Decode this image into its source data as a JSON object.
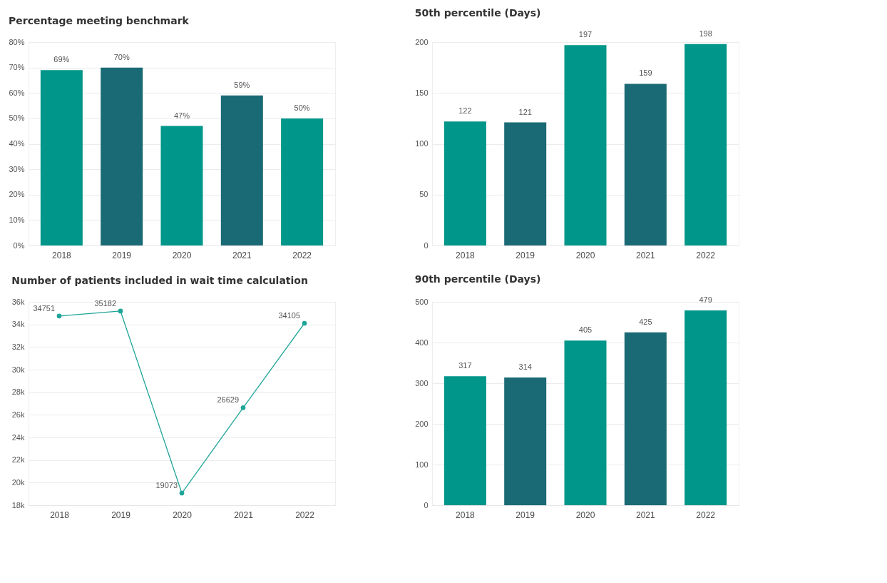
{
  "chart_data": [
    {
      "type": "bar",
      "title": "Percentage meeting benchmark",
      "categories": [
        "2018",
        "2019",
        "2020",
        "2021",
        "2022"
      ],
      "values": [
        69,
        70,
        47,
        59,
        50
      ],
      "value_labels": [
        "69%",
        "70%",
        "47%",
        "59%",
        "50%"
      ],
      "colors": [
        "#00968a",
        "#1a6a75",
        "#00968a",
        "#1a6a75",
        "#00968a"
      ],
      "ylim": [
        0,
        80
      ],
      "yticks": [
        {
          "value": 0,
          "label": "0%"
        },
        {
          "value": 10,
          "label": "10%"
        },
        {
          "value": 20,
          "label": "20%"
        },
        {
          "value": 30,
          "label": "30%"
        },
        {
          "value": 40,
          "label": "40%"
        },
        {
          "value": 50,
          "label": "50%"
        },
        {
          "value": 60,
          "label": "60%"
        },
        {
          "value": 70,
          "label": "70%"
        },
        {
          "value": 80,
          "label": "80%"
        }
      ],
      "grid": "y"
    },
    {
      "type": "bar",
      "title": "50th percentile (Days)",
      "categories": [
        "2018",
        "2019",
        "2020",
        "2021",
        "2022"
      ],
      "values": [
        122,
        121,
        197,
        159,
        198
      ],
      "data_labels": true,
      "colors": [
        "#00968a",
        "#1a6a75",
        "#00968a",
        "#1a6a75",
        "#00968a"
      ],
      "ylim": [
        0,
        200
      ],
      "yticks": [
        0,
        50,
        100,
        150,
        200
      ],
      "grid": "y"
    },
    {
      "type": "line",
      "title": "Number of patients included in wait time calculation",
      "categories": [
        "2018",
        "2019",
        "2020",
        "2021",
        "2022"
      ],
      "series": [
        {
          "color": "#1fa597",
          "values": [
            34751,
            35182,
            19073,
            26629,
            34105
          ]
        }
      ],
      "data_labels": true,
      "marker": "circle",
      "ylim": [
        18000,
        36000
      ],
      "yticks": [
        {
          "value": 18000,
          "label": "18k"
        },
        {
          "value": 20000,
          "label": "20k"
        },
        {
          "value": 22000,
          "label": "22k"
        },
        {
          "value": 24000,
          "label": "24k"
        },
        {
          "value": 26000,
          "label": "26k"
        },
        {
          "value": 28000,
          "label": "28k"
        },
        {
          "value": 30000,
          "label": "30k"
        },
        {
          "value": 32000,
          "label": "32k"
        },
        {
          "value": 34000,
          "label": "34k"
        },
        {
          "value": 36000,
          "label": "36k"
        }
      ],
      "grid": "y"
    },
    {
      "type": "bar",
      "title": "90th percentile (Days)",
      "categories": [
        "2018",
        "2019",
        "2020",
        "2021",
        "2022"
      ],
      "values": [
        317,
        314,
        405,
        425,
        479
      ],
      "data_labels": true,
      "colors": [
        "#00968a",
        "#1a6a75",
        "#00968a",
        "#1a6a75",
        "#00968a"
      ],
      "ylim": [
        0,
        500
      ],
      "yticks": [
        0,
        100,
        200,
        300,
        400,
        500
      ],
      "grid": "y"
    }
  ]
}
